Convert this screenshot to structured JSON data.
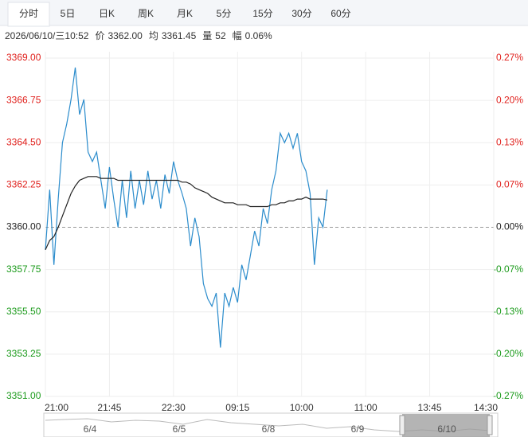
{
  "tabs": [
    "分时",
    "5日",
    "日K",
    "周K",
    "月K",
    "5分",
    "15分",
    "30分",
    "60分"
  ],
  "selected_tab": 0,
  "info": [
    [
      "2026/06/10/三10:52"
    ],
    [
      "价",
      "3362.00"
    ],
    [
      "均",
      "3361.45"
    ],
    [
      "量",
      "52"
    ],
    [
      "幅",
      "0.06%"
    ]
  ],
  "navigator": {
    "dates": [
      "6/4",
      "6/5",
      "6/8",
      "6/9",
      "6/10"
    ]
  },
  "chart_data": {
    "type": "line",
    "x": [
      0,
      3,
      6,
      9,
      12,
      15,
      18,
      21,
      24,
      27,
      30,
      33,
      36,
      39,
      42,
      45,
      48,
      51,
      54,
      57,
      60,
      63,
      66,
      69,
      72,
      75,
      78,
      81,
      84,
      87,
      90,
      93,
      96,
      99,
      102,
      105,
      108,
      111,
      114,
      117,
      120,
      123,
      126,
      129,
      132,
      135,
      138,
      141,
      144,
      147,
      150,
      153,
      156,
      159,
      162,
      165,
      168,
      171,
      174,
      177,
      180,
      183,
      186,
      189,
      192,
      195,
      198
    ],
    "series": [
      {
        "name": "价",
        "color": "#2b8ccc",
        "values": [
          3358.8,
          3362.0,
          3358.0,
          3361.5,
          3364.5,
          3365.5,
          3366.8,
          3368.5,
          3366.0,
          3366.8,
          3364.0,
          3363.5,
          3364.0,
          3362.5,
          3361.0,
          3363.2,
          3361.5,
          3360.0,
          3362.5,
          3360.5,
          3363.0,
          3361.0,
          3362.5,
          3361.2,
          3363.0,
          3361.5,
          3362.5,
          3361.0,
          3362.8,
          3361.8,
          3363.5,
          3362.5,
          3361.8,
          3361.0,
          3359.0,
          3360.5,
          3359.5,
          3357.0,
          3356.2,
          3355.8,
          3356.5,
          3353.6,
          3356.5,
          3355.8,
          3356.8,
          3356.0,
          3358.0,
          3357.2,
          3358.5,
          3359.8,
          3359.0,
          3361.0,
          3360.2,
          3362.0,
          3363.0,
          3365.0,
          3364.5,
          3365.0,
          3364.2,
          3365.0,
          3363.5,
          3363.0,
          3361.8,
          3358.0,
          3360.5,
          3360.0,
          3362.0
        ]
      },
      {
        "name": "均",
        "color": "#222222",
        "values": [
          3358.8,
          3359.3,
          3359.5,
          3360.0,
          3360.6,
          3361.2,
          3361.8,
          3362.2,
          3362.5,
          3362.6,
          3362.7,
          3362.7,
          3362.7,
          3362.6,
          3362.6,
          3362.6,
          3362.6,
          3362.5,
          3362.5,
          3362.5,
          3362.5,
          3362.5,
          3362.5,
          3362.5,
          3362.5,
          3362.5,
          3362.5,
          3362.5,
          3362.5,
          3362.5,
          3362.5,
          3362.5,
          3362.4,
          3362.4,
          3362.3,
          3362.1,
          3362.0,
          3361.9,
          3361.8,
          3361.6,
          3361.5,
          3361.4,
          3361.3,
          3361.3,
          3361.3,
          3361.2,
          3361.2,
          3361.2,
          3361.1,
          3361.1,
          3361.1,
          3361.1,
          3361.1,
          3361.2,
          3361.2,
          3361.3,
          3361.3,
          3361.4,
          3361.4,
          3361.5,
          3361.5,
          3361.6,
          3361.5,
          3361.5,
          3361.5,
          3361.5,
          3361.45
        ]
      }
    ],
    "xlim": [
      0,
      315
    ],
    "xticks": [
      {
        "value": 0,
        "label": "21:00"
      },
      {
        "value": 45,
        "label": "21:45"
      },
      {
        "value": 90,
        "label": "22:30"
      },
      {
        "value": 135,
        "label": "09:15"
      },
      {
        "value": 180,
        "label": "10:00"
      },
      {
        "value": 225,
        "label": "11:00"
      },
      {
        "value": 270,
        "label": "13:45"
      },
      {
        "value": 315,
        "label": "14:30"
      }
    ],
    "ylim": [
      3351,
      3369
    ],
    "yticks": [
      {
        "value": 3369,
        "label": "3369.00"
      },
      {
        "value": 3366.75,
        "label": "3366.75"
      },
      {
        "value": 3364.5,
        "label": "3364.50"
      },
      {
        "value": 3362.25,
        "label": "3362.25"
      },
      {
        "value": 3360,
        "label": "3360.00"
      },
      {
        "value": 3357.75,
        "label": "3357.75"
      },
      {
        "value": 3355.5,
        "label": "3355.50"
      },
      {
        "value": 3353.25,
        "label": "3353.25"
      },
      {
        "value": 3351,
        "label": "3351.00"
      }
    ],
    "y2lim": [
      -0.268,
      0.268
    ],
    "y2ticks": [
      {
        "value": 0.268,
        "label": "0.27%"
      },
      {
        "value": 0.201,
        "label": "0.20%"
      },
      {
        "value": 0.134,
        "label": "0.13%"
      },
      {
        "value": 0.067,
        "label": "0.07%"
      },
      {
        "value": 0,
        "label": "0.00%"
      },
      {
        "value": -0.067,
        "label": "-0.07%"
      },
      {
        "value": -0.134,
        "label": "-0.13%"
      },
      {
        "value": -0.201,
        "label": "-0.20%"
      },
      {
        "value": -0.268,
        "label": "-0.27%"
      }
    ],
    "baseline": 3360,
    "up_color": "#e0201c",
    "down_color": "#1a9a1a",
    "grid": true
  }
}
